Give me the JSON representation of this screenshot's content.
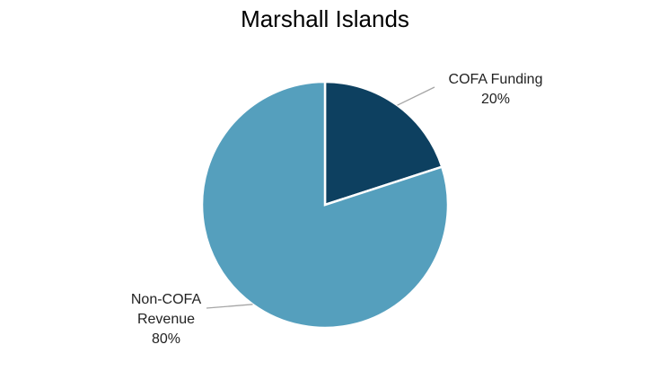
{
  "chart_data": {
    "type": "pie",
    "title": "Marshall Islands",
    "categories": [
      "COFA Funding",
      "Non-COFA Revenue"
    ],
    "values": [
      20,
      80
    ],
    "value_labels": [
      "20%",
      "80%"
    ],
    "colors": [
      "#0d4060",
      "#559fbd"
    ]
  }
}
